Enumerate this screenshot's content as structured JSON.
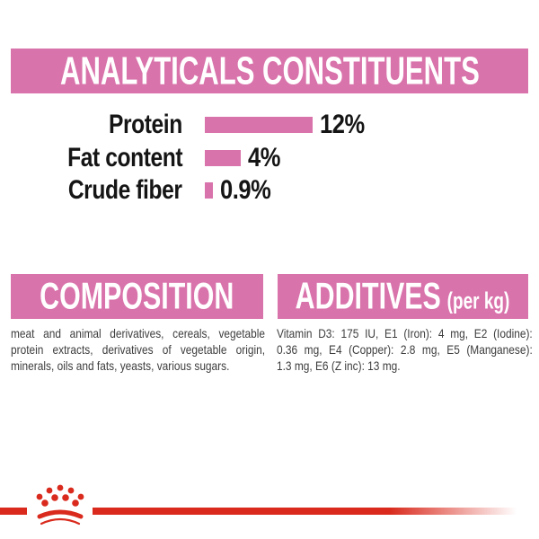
{
  "colors": {
    "pink": "#D973AB",
    "red": "#D92A1D"
  },
  "analytical": {
    "title": "ANALYTICALS CONSTITUENTS"
  },
  "chart_data": {
    "type": "bar",
    "orientation": "horizontal",
    "title": "ANALYTICALS CONSTITUENTS",
    "categories": [
      "Protein",
      "Fat content",
      "Crude fiber"
    ],
    "values": [
      12,
      4,
      0.9
    ],
    "value_labels": [
      "12%",
      "4%",
      "0.9%"
    ],
    "unit": "%",
    "xlim": [
      0,
      12
    ],
    "bar_color": "#D973AB",
    "grid": false,
    "legend": false
  },
  "composition": {
    "title": "COMPOSITION",
    "text": "meat and animal derivatives, cereals, vegetable protein extracts, derivatives of vegetable origin, minerals, oils and fats, yeasts, various sugars.",
    "lines": [
      "meat and animal derivatives, cereals, vegetable",
      "protein extracts, derivatives of vegetable origin,",
      "minerals, oils and fats, yeasts, various sugars."
    ]
  },
  "additives": {
    "title": "ADDITIVES",
    "suffix": "(per kg)",
    "text": "Vitamin D3: 175 IU, E1 (Iron): 4 mg, E2 (Iodine): 0.36 mg, E4 (Copper): 2.8 mg, E5 (Manganese): 1.3 mg, E6 (Z inc): 13 mg.",
    "lines": [
      "Vitamin D3: 175 IU, E1 (Iron): 4 mg, E2 (Iodine):",
      "0.36 mg, E4 (Copper): 2.8 mg, E5 (Manganese):",
      "1.3 mg, E6 (Z inc): 13 mg."
    ]
  },
  "footer": {
    "logo_icon": "crown-logo-icon"
  }
}
